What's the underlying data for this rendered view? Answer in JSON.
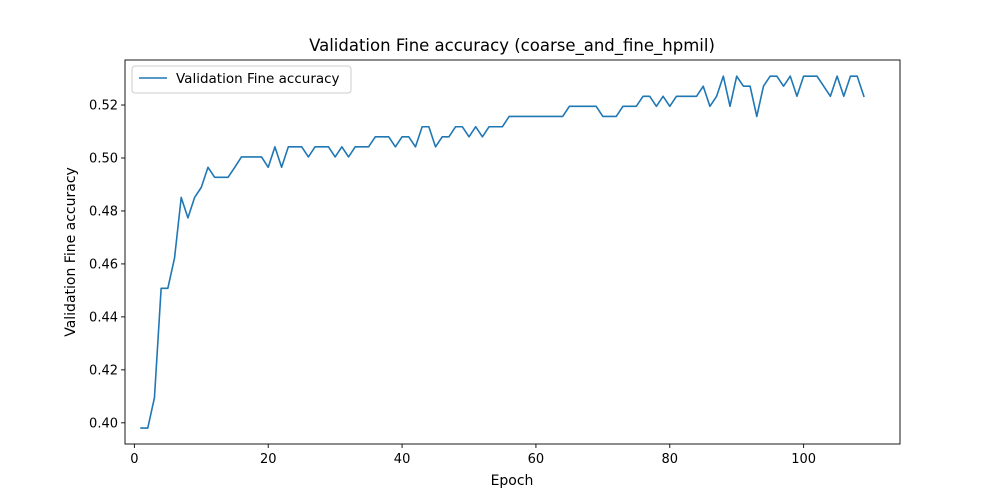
{
  "chart_data": {
    "type": "line",
    "title": "Validation Fine accuracy (coarse_and_fine_hpmil)",
    "xlabel": "Epoch",
    "ylabel": "Validation Fine accuracy",
    "xlim": [
      -1.4,
      114.4
    ],
    "ylim": [
      0.392,
      0.537
    ],
    "xticks": [
      0,
      20,
      40,
      60,
      80,
      100
    ],
    "xtick_labels": [
      "0",
      "20",
      "40",
      "60",
      "80",
      "100"
    ],
    "yticks": [
      0.4,
      0.42,
      0.44,
      0.46,
      0.48,
      0.5,
      0.52
    ],
    "ytick_labels": [
      "0.40",
      "0.42",
      "0.44",
      "0.46",
      "0.48",
      "0.50",
      "0.52"
    ],
    "grid": false,
    "legend": "upper-left",
    "series": [
      {
        "name": "Validation Fine accuracy",
        "color": "#1f77b4",
        "x": [
          1,
          2,
          3,
          4,
          5,
          6,
          7,
          8,
          9,
          10,
          11,
          12,
          13,
          14,
          15,
          16,
          17,
          18,
          19,
          20,
          21,
          22,
          23,
          24,
          25,
          26,
          27,
          28,
          29,
          30,
          31,
          32,
          33,
          34,
          35,
          36,
          37,
          38,
          39,
          40,
          41,
          42,
          43,
          44,
          45,
          46,
          47,
          48,
          49,
          50,
          51,
          52,
          53,
          54,
          55,
          56,
          57,
          58,
          59,
          60,
          61,
          62,
          63,
          64,
          65,
          66,
          67,
          68,
          69,
          70,
          71,
          72,
          73,
          74,
          75,
          76,
          77,
          78,
          79,
          80,
          81,
          82,
          83,
          84,
          85,
          86,
          87,
          88,
          89,
          90,
          91,
          92,
          93,
          94,
          95,
          96,
          97,
          98,
          99,
          100,
          101,
          102,
          103,
          104,
          105,
          106,
          107,
          108,
          109
        ],
        "y": [
          0.398,
          0.398,
          0.4095,
          0.4508,
          0.4508,
          0.4622,
          0.4851,
          0.4774,
          0.4851,
          0.4889,
          0.4965,
          0.4927,
          0.4927,
          0.4927,
          0.4965,
          0.5004,
          0.5004,
          0.5004,
          0.5004,
          0.4965,
          0.5042,
          0.4965,
          0.5042,
          0.5042,
          0.5042,
          0.5004,
          0.5042,
          0.5042,
          0.5042,
          0.5004,
          0.5042,
          0.5004,
          0.5042,
          0.5042,
          0.5042,
          0.508,
          0.508,
          0.508,
          0.5042,
          0.508,
          0.508,
          0.5042,
          0.5118,
          0.5118,
          0.5042,
          0.508,
          0.508,
          0.5118,
          0.5118,
          0.508,
          0.5118,
          0.508,
          0.5118,
          0.5118,
          0.5118,
          0.5157,
          0.5157,
          0.5157,
          0.5157,
          0.5157,
          0.5157,
          0.5157,
          0.5157,
          0.5157,
          0.5195,
          0.5195,
          0.5195,
          0.5195,
          0.5195,
          0.5157,
          0.5157,
          0.5157,
          0.5195,
          0.5195,
          0.5195,
          0.5233,
          0.5233,
          0.5195,
          0.5233,
          0.5195,
          0.5233,
          0.5233,
          0.5233,
          0.5233,
          0.5271,
          0.5195,
          0.5233,
          0.5309,
          0.5195,
          0.5309,
          0.5271,
          0.5271,
          0.5157,
          0.5271,
          0.5309,
          0.5309,
          0.5271,
          0.5309,
          0.5233,
          0.5309,
          0.5309,
          0.5309,
          0.5271,
          0.5233,
          0.5309,
          0.5233,
          0.5309,
          0.5309,
          0.5233
        ]
      }
    ]
  }
}
